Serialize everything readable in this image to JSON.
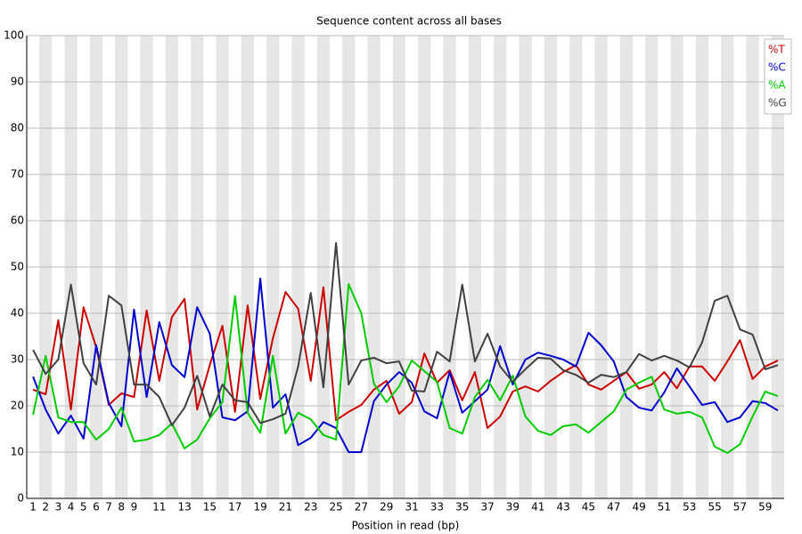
{
  "chart_data": {
    "type": "line",
    "title": "Sequence content across all bases",
    "x_label": "Position in read (bp)",
    "categories": [
      "1",
      "2",
      "3",
      "4",
      "5",
      "6",
      "7",
      "8",
      "9",
      null,
      "11",
      null,
      "13",
      null,
      "15",
      null,
      "17",
      null,
      "19",
      null,
      "21",
      null,
      "23",
      null,
      "25",
      null,
      "27",
      null,
      "29",
      null,
      "31",
      null,
      "33",
      null,
      "35",
      null,
      "37",
      null,
      "39",
      null,
      "41",
      null,
      "43",
      null,
      "45",
      null,
      "47",
      null,
      "49",
      null,
      "51",
      null,
      "53",
      null,
      "55",
      null,
      "57",
      null,
      "59",
      null
    ],
    "ylim": [
      0,
      100
    ],
    "yticks": [
      0,
      10,
      20,
      30,
      40,
      50,
      60,
      70,
      80,
      90,
      100
    ],
    "grid": true,
    "legend": "top-right",
    "series": [
      {
        "name": "%T",
        "color": "#cc0000",
        "values": [
          23.5,
          22.5,
          38.5,
          19.2,
          41.3,
          32.7,
          20.2,
          22.7,
          21.9,
          40.6,
          25.4,
          39.2,
          43.1,
          19.2,
          28.8,
          37.3,
          18.7,
          41.7,
          21.5,
          34.6,
          44.6,
          41.0,
          25.4,
          45.6,
          16.9,
          18.7,
          20.2,
          23.5,
          25.4,
          18.3,
          20.8,
          31.3,
          25.0,
          27.7,
          21.2,
          27.3,
          15.2,
          17.7,
          23.1,
          24.2,
          23.1,
          25.4,
          27.3,
          28.8,
          24.6,
          23.5,
          25.4,
          27.3,
          23.7,
          24.6,
          27.3,
          23.8,
          28.5,
          28.5,
          25.4,
          29.6,
          34.2,
          25.8,
          28.5,
          29.8
        ]
      },
      {
        "name": "%C",
        "color": "#0000cc",
        "values": [
          26.3,
          19.2,
          14.0,
          17.9,
          12.9,
          33.1,
          20.6,
          15.6,
          40.8,
          21.9,
          38.1,
          28.8,
          26.2,
          41.3,
          35.6,
          17.5,
          16.9,
          18.8,
          47.5,
          19.6,
          22.5,
          11.5,
          13.1,
          16.5,
          15.2,
          10.0,
          10.0,
          21.0,
          24.6,
          27.3,
          25.0,
          18.8,
          17.3,
          27.3,
          18.5,
          21.0,
          23.5,
          32.9,
          24.6,
          30.0,
          31.5,
          30.8,
          30.0,
          28.5,
          35.8,
          33.1,
          29.6,
          21.9,
          19.6,
          19.0,
          22.9,
          28.1,
          24.2,
          20.2,
          20.8,
          16.5,
          17.5,
          21.0,
          20.6,
          19.0
        ]
      },
      {
        "name": "%A",
        "color": "#00cc00",
        "values": [
          18.1,
          30.8,
          17.5,
          16.5,
          16.5,
          12.7,
          15.0,
          19.6,
          12.3,
          12.7,
          13.7,
          16.2,
          10.8,
          12.7,
          17.3,
          20.8,
          43.7,
          18.5,
          14.2,
          30.8,
          14.0,
          18.5,
          17.1,
          13.7,
          12.7,
          46.3,
          40.0,
          24.8,
          20.8,
          24.2,
          29.8,
          27.5,
          25.2,
          15.2,
          14.0,
          21.9,
          25.6,
          21.2,
          26.5,
          17.7,
          14.6,
          13.7,
          15.6,
          16.0,
          14.2,
          16.5,
          18.8,
          23.5,
          25.0,
          26.3,
          19.2,
          18.3,
          18.7,
          17.5,
          11.2,
          9.8,
          11.7,
          17.7,
          23.1,
          22.1
        ]
      },
      {
        "name": "%G",
        "color": "#404040",
        "values": [
          32.1,
          26.9,
          30.0,
          46.2,
          29.2,
          24.6,
          43.8,
          41.7,
          24.6,
          24.6,
          21.9,
          15.8,
          19.6,
          26.5,
          17.7,
          24.6,
          21.2,
          20.8,
          16.3,
          17.1,
          18.3,
          28.5,
          44.4,
          24.0,
          55.2,
          24.6,
          29.8,
          30.4,
          29.2,
          29.6,
          23.3,
          23.1,
          31.7,
          29.6,
          46.2,
          29.6,
          35.6,
          28.5,
          25.2,
          27.9,
          30.4,
          30.2,
          27.7,
          26.7,
          25.0,
          26.7,
          26.2,
          27.3,
          31.2,
          29.8,
          30.8,
          29.8,
          28.3,
          33.7,
          42.7,
          43.8,
          36.5,
          35.4,
          27.9,
          28.8
        ]
      }
    ]
  }
}
